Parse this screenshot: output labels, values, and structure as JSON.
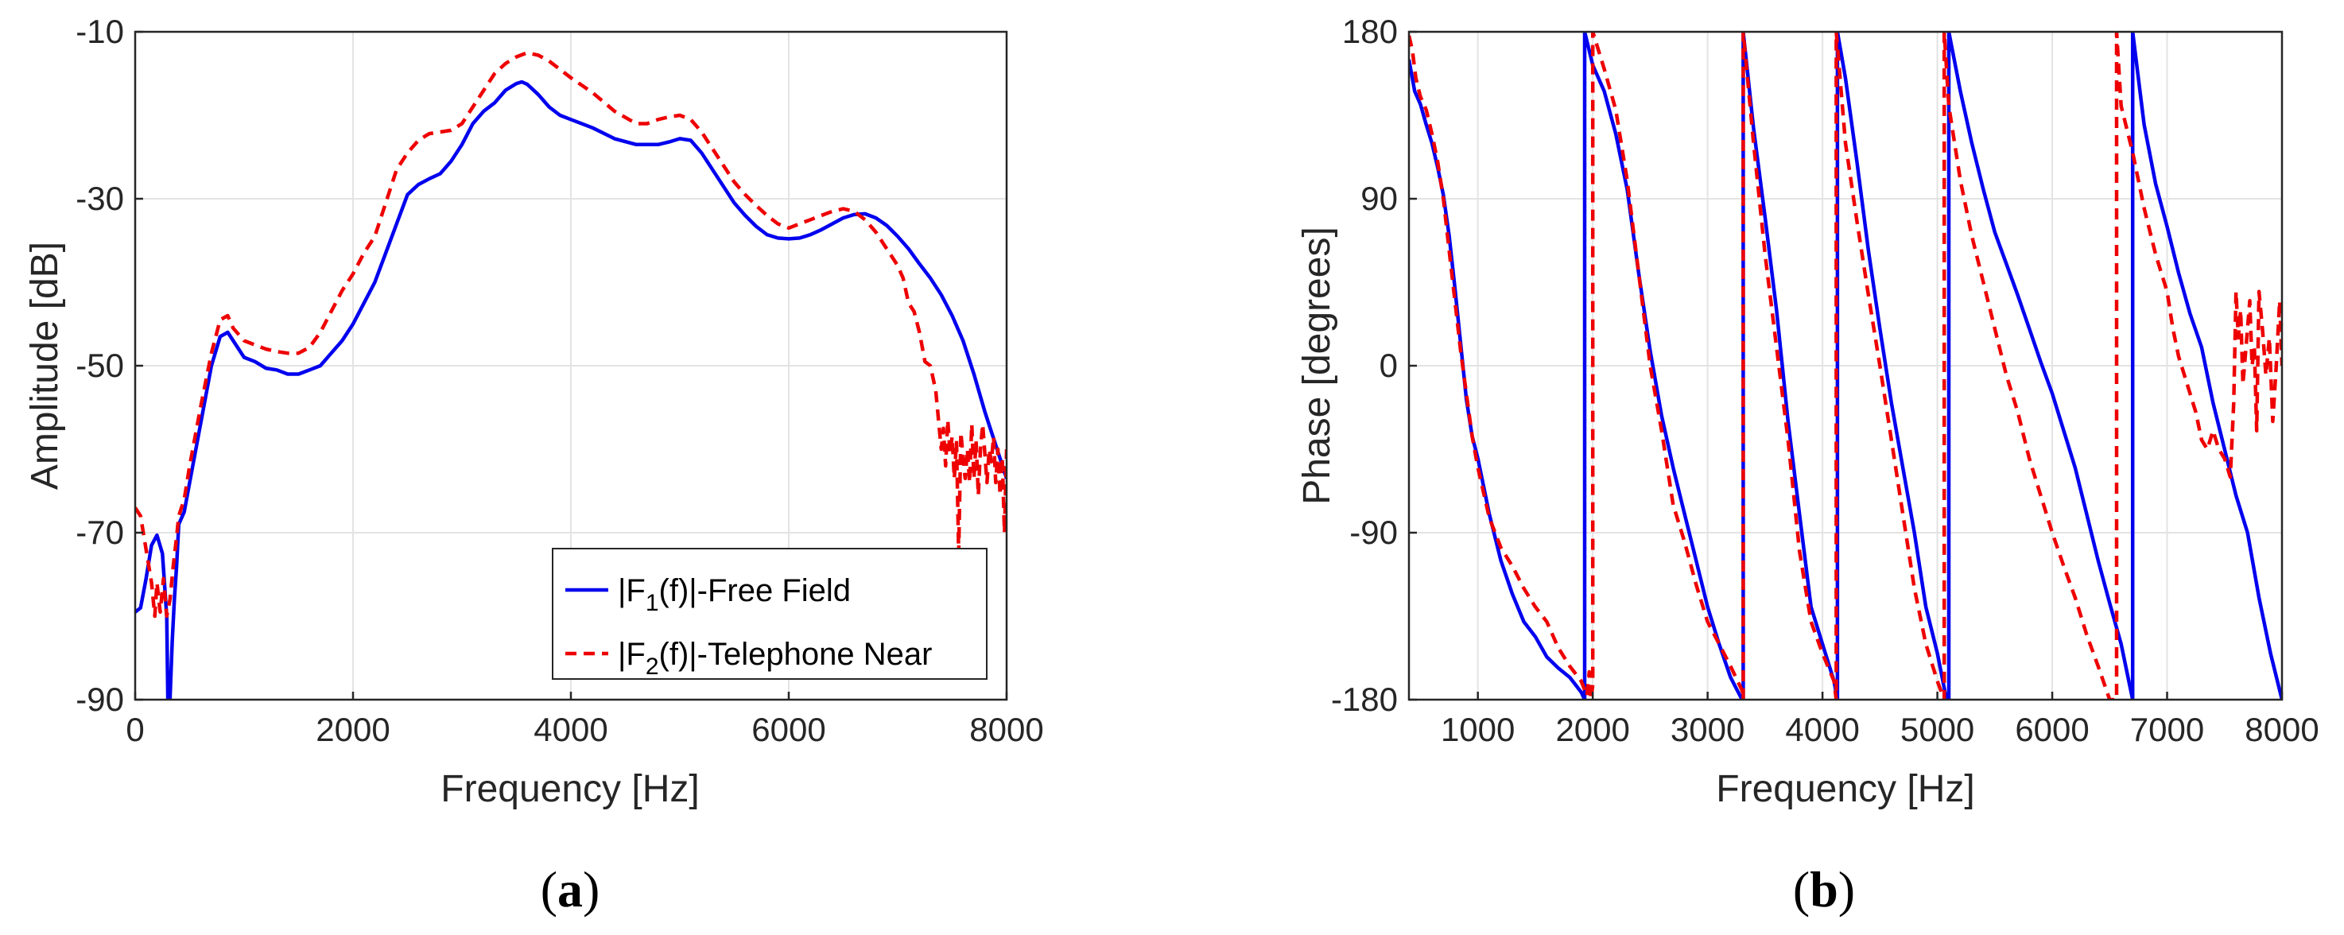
{
  "chart_data": [
    {
      "type": "line",
      "panel": "a",
      "caption_letter": "a",
      "xlabel": "Frequency [Hz]",
      "ylabel": "Amplitude [dB]",
      "xlim": [
        0,
        8000
      ],
      "ylim": [
        -90,
        -10
      ],
      "xticks": [
        0,
        2000,
        4000,
        6000,
        8000
      ],
      "yticks": [
        -90,
        -70,
        -50,
        -30,
        -10
      ],
      "grid": true,
      "legend_position": "bottom-right",
      "series": [
        {
          "name": "|F1(f)|-Free Field",
          "legend_base": "|F",
          "legend_sub": "1",
          "legend_rest": "(f)|-Free Field",
          "color": "#0000ee",
          "style": "solid",
          "x": [
            0,
            50,
            100,
            150,
            200,
            250,
            290,
            300,
            320,
            340,
            360,
            380,
            400,
            450,
            500,
            600,
            700,
            780,
            850,
            900,
            1000,
            1100,
            1200,
            1300,
            1400,
            1500,
            1600,
            1700,
            1800,
            1900,
            2000,
            2100,
            2200,
            2300,
            2400,
            2500,
            2600,
            2700,
            2800,
            2900,
            3000,
            3100,
            3200,
            3300,
            3400,
            3500,
            3550,
            3600,
            3700,
            3800,
            3900,
            4000,
            4200,
            4400,
            4600,
            4800,
            4900,
            5000,
            5100,
            5200,
            5300,
            5400,
            5500,
            5600,
            5700,
            5800,
            5900,
            6000,
            6100,
            6200,
            6300,
            6400,
            6500,
            6600,
            6700,
            6800,
            6900,
            7000,
            7100,
            7200,
            7300,
            7400,
            7500,
            7600,
            7700,
            7800,
            7900,
            8000
          ],
          "y": [
            -79.5,
            -79.0,
            -75.5,
            -71.5,
            -70.3,
            -72.5,
            -80.0,
            -90.0,
            -90.0,
            -83.0,
            -78.0,
            -74.0,
            -69.0,
            -67.5,
            -64.0,
            -57.0,
            -50.0,
            -46.5,
            -46.0,
            -47.0,
            -49.0,
            -49.5,
            -50.3,
            -50.5,
            -51.0,
            -51.0,
            -50.5,
            -50.0,
            -48.5,
            -47.0,
            -45.0,
            -42.5,
            -40.0,
            -36.5,
            -33.0,
            -29.5,
            -28.3,
            -27.6,
            -27.0,
            -25.5,
            -23.5,
            -21.0,
            -19.5,
            -18.5,
            -17.0,
            -16.2,
            -16.0,
            -16.3,
            -17.5,
            -19.0,
            -20.0,
            -20.5,
            -21.5,
            -22.8,
            -23.5,
            -23.5,
            -23.2,
            -22.8,
            -23.0,
            -24.5,
            -26.5,
            -28.5,
            -30.5,
            -32.0,
            -33.3,
            -34.3,
            -34.7,
            -34.8,
            -34.7,
            -34.3,
            -33.7,
            -33.0,
            -32.3,
            -31.9,
            -31.8,
            -32.3,
            -33.2,
            -34.5,
            -36.0,
            -37.8,
            -39.5,
            -41.5,
            -44.0,
            -47.0,
            -51.0,
            -55.5,
            -59.5,
            -63.5
          ]
        },
        {
          "name": "|F2(f)|-Telephone Near",
          "legend_base": "|F",
          "legend_sub": "2",
          "legend_rest": "(f)|-Telephone Near",
          "color": "#ee0000",
          "style": "dashed",
          "x": [
            0,
            50,
            100,
            150,
            180,
            200,
            230,
            260,
            290,
            320,
            350,
            380,
            400,
            450,
            500,
            600,
            700,
            780,
            850,
            900,
            1000,
            1100,
            1200,
            1300,
            1400,
            1500,
            1600,
            1700,
            1800,
            1900,
            2000,
            2100,
            2200,
            2300,
            2400,
            2500,
            2600,
            2700,
            2800,
            2900,
            3000,
            3100,
            3200,
            3300,
            3400,
            3500,
            3600,
            3700,
            3800,
            3900,
            4000,
            4200,
            4400,
            4600,
            4700,
            4800,
            4900,
            5000,
            5100,
            5200,
            5300,
            5400,
            5500,
            5600,
            5700,
            5800,
            5900,
            6000,
            6100,
            6200,
            6300,
            6400,
            6500,
            6600,
            6700,
            6800,
            6900,
            7000,
            7050,
            7100,
            7150,
            7200,
            7250,
            7300,
            7350,
            7400,
            7420,
            7440,
            7460,
            7480,
            7500,
            7520,
            7540,
            7560,
            7580,
            7600,
            7620,
            7640,
            7660,
            7680,
            7700,
            7720,
            7740,
            7760,
            7780,
            7800,
            7820,
            7840,
            7860,
            7880,
            7900,
            7920,
            7940,
            7960,
            7980,
            8000
          ],
          "y": [
            -67.0,
            -68.0,
            -72.0,
            -76.0,
            -80.0,
            -76.0,
            -79.5,
            -75.5,
            -80.0,
            -78.0,
            -74.0,
            -70.5,
            -68.0,
            -66.0,
            -62.0,
            -55.0,
            -48.5,
            -44.5,
            -44.0,
            -45.5,
            -47.0,
            -47.5,
            -48.0,
            -48.3,
            -48.5,
            -48.5,
            -47.8,
            -46.0,
            -43.5,
            -41.0,
            -39.0,
            -36.5,
            -34.5,
            -30.5,
            -26.5,
            -24.5,
            -23.0,
            -22.2,
            -22.0,
            -21.8,
            -21.0,
            -19.0,
            -17.0,
            -15.0,
            -13.8,
            -13.0,
            -12.5,
            -12.8,
            -13.5,
            -14.5,
            -15.5,
            -17.3,
            -19.5,
            -21.0,
            -21.0,
            -20.5,
            -20.2,
            -20.0,
            -20.5,
            -22.0,
            -24.0,
            -26.0,
            -28.0,
            -29.5,
            -30.8,
            -32.0,
            -33.0,
            -33.5,
            -33.0,
            -32.5,
            -32.0,
            -31.5,
            -31.2,
            -31.5,
            -32.5,
            -34.0,
            -36.0,
            -38.0,
            -39.5,
            -42.5,
            -43.5,
            -46.0,
            -49.5,
            -50.0,
            -53.0,
            -60.0,
            -57.5,
            -62.0,
            -56.5,
            -60.5,
            -58.5,
            -63.5,
            -59.0,
            -72.5,
            -58.0,
            -61.0,
            -63.5,
            -60.0,
            -64.0,
            -57.0,
            -63.5,
            -59.0,
            -65.5,
            -60.0,
            -57.0,
            -60.5,
            -64.0,
            -60.0,
            -61.5,
            -58.5,
            -64.0,
            -60.0,
            -65.5,
            -61.0,
            -70.0,
            -60.0
          ]
        }
      ]
    },
    {
      "type": "line",
      "panel": "b",
      "caption_letter": "b",
      "xlabel": "Frequency [Hz]",
      "ylabel": "Phase [degrees]",
      "xlim": [
        400,
        8000
      ],
      "ylim": [
        -180,
        180
      ],
      "xticks": [
        1000,
        2000,
        3000,
        4000,
        5000,
        6000,
        7000,
        8000
      ],
      "yticks": [
        -180,
        -90,
        0,
        90,
        180
      ],
      "grid": true,
      "series": [
        {
          "name": "|F1(f)|-Free Field",
          "color": "#0000ee",
          "style": "solid",
          "x": [
            400,
            450,
            500,
            550,
            600,
            650,
            700,
            750,
            800,
            850,
            900,
            950,
            1000,
            1100,
            1200,
            1300,
            1400,
            1500,
            1600,
            1700,
            1800,
            1850,
            1900,
            1930,
            1930,
            2000,
            2100,
            2200,
            2300,
            2400,
            2500,
            2600,
            2700,
            2800,
            2900,
            3000,
            3100,
            3200,
            3300,
            3310,
            3310,
            3400,
            3500,
            3600,
            3700,
            3800,
            3900,
            4000,
            4100,
            4130,
            4130,
            4200,
            4300,
            4400,
            4500,
            4600,
            4700,
            4800,
            4900,
            5000,
            5080,
            5100,
            5100,
            5200,
            5300,
            5400,
            5500,
            5600,
            5700,
            5800,
            5900,
            6000,
            6100,
            6200,
            6300,
            6400,
            6500,
            6600,
            6700,
            6700,
            6800,
            6900,
            7000,
            7100,
            7200,
            7300,
            7400,
            7500,
            7600,
            7700,
            7800,
            7900,
            8000
          ],
          "y": [
            165,
            148,
            141,
            130,
            120,
            107,
            92,
            70,
            42,
            12,
            -18,
            -38,
            -50,
            -80,
            -105,
            -123,
            -138,
            -146,
            -157,
            -163,
            -168,
            -172,
            -176,
            -180,
            180,
            162,
            148,
            125,
            95,
            50,
            8,
            -27,
            -55,
            -80,
            -105,
            -130,
            -150,
            -168,
            -180,
            -180,
            180,
            128,
            80,
            30,
            -30,
            -80,
            -130,
            -150,
            -170,
            -180,
            180,
            155,
            110,
            62,
            20,
            -20,
            -55,
            -90,
            -130,
            -155,
            -180,
            -180,
            180,
            148,
            120,
            95,
            72,
            55,
            38,
            20,
            2,
            -15,
            -35,
            -55,
            -80,
            -105,
            -128,
            -150,
            -180,
            180,
            130,
            98,
            75,
            50,
            28,
            10,
            -20,
            -45,
            -70,
            -90,
            -125,
            -155,
            -180
          ]
        },
        {
          "name": "|F2(f)|-Telephone Near",
          "color": "#ee0000",
          "style": "dashed",
          "x": [
            400,
            430,
            460,
            500,
            550,
            600,
            650,
            700,
            750,
            800,
            850,
            900,
            950,
            1000,
            1100,
            1200,
            1300,
            1400,
            1500,
            1600,
            1700,
            1800,
            1900,
            1950,
            1970,
            1985,
            2000,
            2000,
            2050,
            2100,
            2200,
            2300,
            2400,
            2500,
            2600,
            2700,
            2800,
            2900,
            3000,
            3100,
            3200,
            3300,
            3310,
            3310,
            3400,
            3500,
            3600,
            3700,
            3800,
            3900,
            4000,
            4100,
            4120,
            4120,
            4200,
            4300,
            4400,
            4500,
            4600,
            4700,
            4800,
            4900,
            5000,
            5060,
            5060,
            5100,
            5200,
            5300,
            5400,
            5500,
            5600,
            5700,
            5800,
            5900,
            6000,
            6100,
            6200,
            6300,
            6400,
            6500,
            6560,
            6560,
            6600,
            6700,
            6800,
            6900,
            7000,
            7050,
            7100,
            7150,
            7200,
            7250,
            7300,
            7350,
            7400,
            7450,
            7500,
            7550,
            7580,
            7600,
            7620,
            7640,
            7660,
            7700,
            7720,
            7740,
            7760,
            7780,
            7800,
            7830,
            7860,
            7890,
            7920,
            7950,
            7980,
            8000
          ],
          "y": [
            178,
            170,
            155,
            145,
            138,
            125,
            110,
            90,
            62,
            35,
            8,
            -15,
            -38,
            -55,
            -82,
            -98,
            -108,
            -120,
            -130,
            -138,
            -152,
            -162,
            -170,
            -178,
            -165,
            -180,
            -172,
            180,
            170,
            160,
            138,
            100,
            50,
            0,
            -35,
            -75,
            -95,
            -118,
            -138,
            -150,
            -162,
            -175,
            -180,
            180,
            120,
            60,
            10,
            -40,
            -100,
            -138,
            -155,
            -170,
            -180,
            180,
            120,
            78,
            38,
            0,
            -40,
            -80,
            -120,
            -150,
            -170,
            -180,
            180,
            140,
            100,
            70,
            45,
            20,
            -5,
            -25,
            -50,
            -70,
            -90,
            -108,
            -125,
            -145,
            -162,
            -180,
            -180,
            180,
            140,
            115,
            85,
            60,
            40,
            20,
            5,
            -5,
            -15,
            -25,
            -40,
            -45,
            -35,
            -45,
            -50,
            -60,
            -20,
            40,
            15,
            30,
            -10,
            20,
            35,
            0,
            10,
            -35,
            40,
            20,
            -5,
            15,
            -30,
            0,
            35,
            0
          ]
        }
      ]
    }
  ]
}
